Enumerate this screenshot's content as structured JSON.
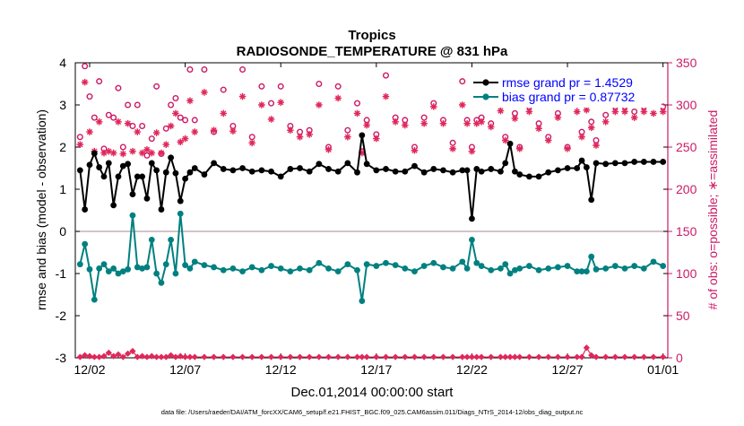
{
  "chart_data": {
    "type": "line",
    "title": "Tropics",
    "subtitle": "RADIOSONDE_TEMPERATURE @ 831 hPa",
    "xlabel": "Dec.01,2014 00:00:00 start",
    "ylabel_left": "rmse and bias (model - observation)",
    "ylabel_right": "# of obs: o=possible; ∗=assimilated",
    "footer": "data file: /Users/raeder/DAI/ATM_forcXX/CAM6_setup/f.e21.FHIST_BGC.f09_025.CAM6assim.011/Diags_NTrS_2014-12/obs_diag_output.nc",
    "x_tick_labels": [
      "12/02",
      "12/07",
      "12/12",
      "12/17",
      "12/22",
      "12/27",
      "01/01"
    ],
    "x_tick_positions": [
      2,
      7,
      12,
      17,
      22,
      27,
      32
    ],
    "xlim": [
      1.25,
      32.25
    ],
    "ylim_left": [
      -3,
      4
    ],
    "ylim_right": [
      0,
      350
    ],
    "y_left_ticks": [
      -3,
      -2,
      -1,
      0,
      1,
      2,
      3,
      4
    ],
    "y_right_ticks": [
      0,
      50,
      100,
      150,
      200,
      250,
      300,
      350
    ],
    "x": [
      1.5,
      1.75,
      2.0,
      2.25,
      2.5,
      2.75,
      3.0,
      3.25,
      3.5,
      3.75,
      4.0,
      4.25,
      4.5,
      4.75,
      5.0,
      5.25,
      5.5,
      5.75,
      6.0,
      6.25,
      6.5,
      6.75,
      7.0,
      7.25,
      7.5,
      8.0,
      8.5,
      9.0,
      9.5,
      10.0,
      10.5,
      11.0,
      11.5,
      12.0,
      12.5,
      13.0,
      13.5,
      14.0,
      14.5,
      15.0,
      15.5,
      16.0,
      16.25,
      16.5,
      17.0,
      17.5,
      18.0,
      18.5,
      19.0,
      19.5,
      20.0,
      20.5,
      21.0,
      21.5,
      21.75,
      22.0,
      22.25,
      22.5,
      23.0,
      23.5,
      23.75,
      24.0,
      24.25,
      24.5,
      25.0,
      25.5,
      26.0,
      26.5,
      27.0,
      27.5,
      27.75,
      28.0,
      28.25,
      28.5,
      29.0,
      29.5,
      30.0,
      30.5,
      31.0,
      31.5,
      32.0
    ],
    "series": [
      {
        "name": "rmse",
        "legend": "rmse grand pr = 1.4529",
        "color": "#000000",
        "values": [
          1.45,
          0.52,
          1.58,
          1.85,
          1.52,
          1.3,
          1.62,
          0.62,
          1.3,
          1.55,
          1.6,
          0.88,
          1.3,
          1.3,
          0.78,
          1.62,
          1.45,
          0.52,
          1.4,
          1.75,
          1.38,
          0.72,
          1.25,
          1.4,
          1.5,
          1.35,
          1.62,
          1.48,
          1.45,
          1.5,
          1.42,
          1.45,
          1.42,
          1.3,
          1.48,
          1.5,
          1.42,
          1.6,
          1.48,
          1.42,
          1.62,
          1.4,
          2.28,
          1.6,
          1.45,
          1.48,
          1.42,
          1.42,
          1.55,
          1.4,
          1.48,
          1.45,
          1.4,
          1.45,
          1.45,
          0.3,
          1.48,
          1.42,
          1.48,
          1.42,
          1.62,
          2.08,
          1.42,
          1.35,
          1.3,
          1.3,
          1.4,
          1.45,
          1.5,
          1.5,
          1.68,
          1.52,
          0.75,
          1.62,
          1.6,
          1.62,
          1.62,
          1.65,
          1.65,
          1.65,
          1.65
        ]
      },
      {
        "name": "bias",
        "legend": "bias grand pr = 0.87732",
        "color": "#008080",
        "values": [
          -0.78,
          -0.3,
          -0.9,
          -1.62,
          -0.88,
          -0.78,
          -0.95,
          -0.88,
          -1.0,
          -0.95,
          -0.9,
          0.38,
          -0.85,
          -0.88,
          -0.85,
          -0.2,
          -1.0,
          -1.22,
          -0.78,
          -0.2,
          -1.0,
          0.42,
          -0.8,
          -0.88,
          -0.72,
          -0.8,
          -0.85,
          -0.92,
          -0.88,
          -0.95,
          -0.85,
          -0.92,
          -0.82,
          -0.88,
          -0.95,
          -0.88,
          -0.92,
          -0.75,
          -0.88,
          -0.95,
          -0.78,
          -0.92,
          -1.65,
          -0.78,
          -0.82,
          -0.75,
          -0.8,
          -0.88,
          -0.95,
          -0.82,
          -0.75,
          -0.85,
          -0.88,
          -0.72,
          -0.88,
          -0.2,
          -0.75,
          -0.82,
          -0.92,
          -0.88,
          -0.78,
          -1.0,
          -0.92,
          -0.88,
          -0.82,
          -0.92,
          -0.88,
          -0.85,
          -0.82,
          -0.95,
          -0.95,
          -0.95,
          -0.6,
          -0.9,
          -0.88,
          -0.82,
          -0.88,
          -0.82,
          -0.88,
          -0.72,
          -0.82
        ]
      },
      {
        "name": "obs possible",
        "marker": "o",
        "color": "#cc1a66",
        "values": [
          262,
          346,
          310,
          285,
          328,
          248,
          288,
          285,
          320,
          250,
          300,
          275,
          300,
          275,
          240,
          260,
          322,
          242,
          272,
          300,
          308,
          285,
          282,
          342,
          282,
          342,
          268,
          318,
          275,
          342,
          262,
          322,
          302,
          322,
          275,
          268,
          270,
          325,
          250,
          322,
          270,
          302,
          245,
          282,
          265,
          335,
          285,
          282,
          250,
          285,
          302,
          282,
          255,
          328,
          282,
          250,
          282,
          285,
          278,
          300,
          262,
          328,
          290,
          250,
          298,
          278,
          262,
          290,
          250,
          300,
          268,
          312,
          280,
          258,
          288,
          298,
          298,
          292,
          298,
          305,
          298
        ]
      },
      {
        "name": "obs assimilated",
        "marker": "*",
        "color": "#e0275a",
        "values": [
          253,
          327,
          268,
          245,
          280,
          243,
          245,
          243,
          280,
          242,
          278,
          245,
          268,
          243,
          247,
          243,
          267,
          243,
          253,
          275,
          290,
          256,
          260,
          305,
          268,
          315,
          270,
          290,
          269,
          310,
          255,
          300,
          283,
          303,
          270,
          262,
          265,
          300,
          247,
          308,
          262,
          290,
          243,
          276,
          260,
          310,
          280,
          276,
          246,
          278,
          298,
          278,
          248,
          300,
          278,
          245,
          278,
          280,
          274,
          293,
          258,
          305,
          284,
          248,
          292,
          272,
          258,
          285,
          248,
          292,
          262,
          294,
          273,
          252,
          280,
          292,
          292,
          285,
          292,
          290,
          292
        ]
      },
      {
        "name": "rejected",
        "marker": "diamond",
        "color": "#e0275a",
        "values": [
          1,
          3,
          2,
          1,
          1,
          2,
          6,
          2,
          4,
          1,
          5,
          8,
          1,
          2,
          1,
          2,
          1,
          1,
          1,
          3,
          1,
          2,
          1,
          1,
          1,
          1,
          1,
          1,
          1,
          1,
          1,
          1,
          1,
          1,
          1,
          1,
          1,
          1,
          1,
          1,
          1,
          1,
          1,
          1,
          1,
          1,
          1,
          1,
          1,
          1,
          1,
          1,
          1,
          1,
          1,
          1,
          1,
          1,
          1,
          1,
          1,
          1,
          1,
          1,
          1,
          1,
          1,
          1,
          1,
          1,
          1,
          12,
          3,
          1,
          1,
          1,
          1,
          1,
          1,
          1,
          1
        ]
      }
    ]
  }
}
